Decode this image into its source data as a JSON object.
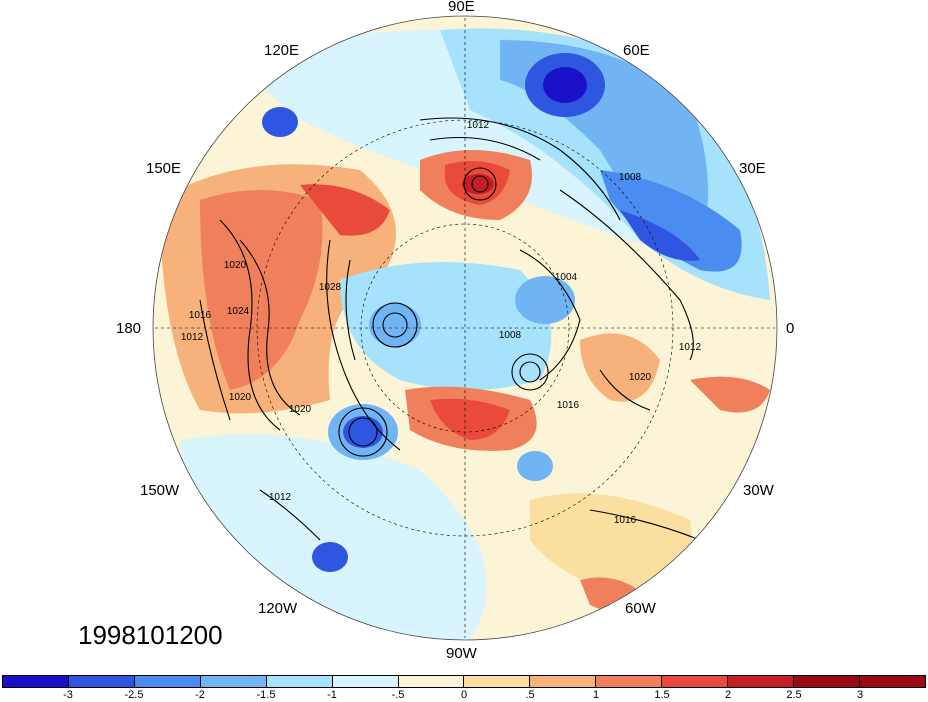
{
  "map": {
    "projection": "north-polar-stereographic",
    "date_label": "1998101200",
    "longitude_labels": [
      "90E",
      "60E",
      "120E",
      "150E",
      "30E",
      "180",
      "0",
      "150W",
      "30W",
      "120W",
      "60W",
      "90W"
    ],
    "contour_labels": [
      "1012",
      "1008",
      "1020",
      "1016",
      "1024",
      "1028",
      "1004",
      "1020",
      "1012",
      "1008",
      "1016",
      "1020",
      "1012",
      "1016",
      "1020",
      "1012"
    ],
    "colors": {
      "neg3": "#1a10c8",
      "neg25": "#2f56e0",
      "neg2": "#4b8cf0",
      "neg15": "#70b4f4",
      "neg1": "#a6e2fb",
      "neg05": "#d8f4fd",
      "pos0": "#fbf4d6",
      "pos05": "#fbdfa0",
      "pos1": "#f7b27c",
      "pos15": "#f0805c",
      "pos2": "#e84b3c",
      "pos25": "#c41e24",
      "pos3": "#9a0a14"
    }
  },
  "colorbar": {
    "ticks": [
      "-3",
      "-2.5",
      "-2",
      "-1.5",
      "-1",
      "-.5",
      "0",
      ".5",
      "1",
      "1.5",
      "2",
      "2.5",
      "3"
    ],
    "colors": [
      "#1a10c8",
      "#2f56e0",
      "#4b8cf0",
      "#70b4f4",
      "#a6e2fb",
      "#d8f4fd",
      "#fbf4d6",
      "#fbdfa0",
      "#f7b27c",
      "#f0805c",
      "#e84b3c",
      "#c41e24",
      "#9a0a14",
      "#9a0a14"
    ]
  }
}
